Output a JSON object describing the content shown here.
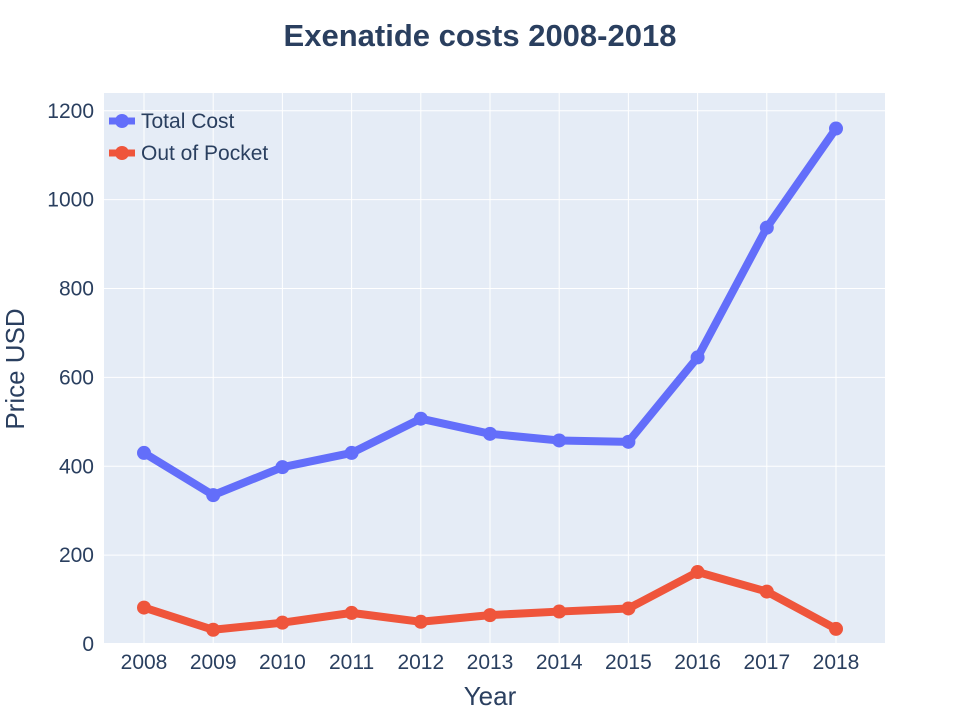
{
  "chart_data": {
    "type": "line",
    "title": "Exenatide costs 2008-2018",
    "xlabel": "Year",
    "ylabel": "Price USD",
    "categories": [
      "2008",
      "2009",
      "2010",
      "2011",
      "2012",
      "2013",
      "2014",
      "2015",
      "2016",
      "2017",
      "2018"
    ],
    "ylim": [
      0,
      1240
    ],
    "yticks": [
      0,
      200,
      400,
      600,
      800,
      1000,
      1200
    ],
    "grid": true,
    "legend_position": "top-left",
    "series": [
      {
        "name": "Total Cost",
        "color": "#636efa",
        "values": [
          430,
          335,
          398,
          430,
          507,
          473,
          458,
          455,
          645,
          937,
          1160
        ]
      },
      {
        "name": "Out of Pocket",
        "color": "#ef553b",
        "values": [
          82,
          32,
          48,
          70,
          50,
          65,
          73,
          80,
          162,
          118,
          34
        ]
      }
    ]
  },
  "colors": {
    "plot_background": "#e5ecf6",
    "grid": "#ffffff",
    "text": "#2a3f5f"
  }
}
